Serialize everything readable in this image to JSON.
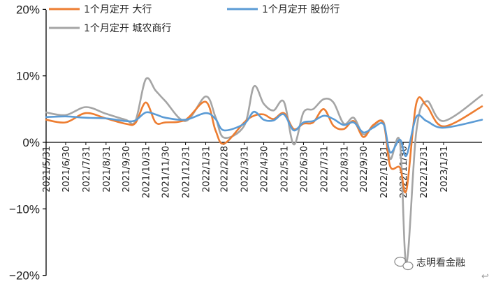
{
  "chart_data": {
    "type": "line",
    "title": "",
    "xlabel": "",
    "ylabel": "",
    "ylim": [
      -20,
      20
    ],
    "y_ticks": [
      20,
      10,
      0,
      -10,
      -20
    ],
    "y_tick_labels": [
      "20%",
      "10%",
      "0%",
      "−10%",
      "−20%"
    ],
    "grid": false,
    "legend_position": "top-left",
    "x": [
      "2021/5/31",
      "2021/6/30",
      "2021/7/31",
      "2021/8/31",
      "2021/9/30",
      "2021/10/31",
      "2021/11/30",
      "2021/12/31",
      "2022/1/31",
      "2022/2/28",
      "2022/3/31",
      "2022/4/30",
      "2022/5/31",
      "2022/6/30",
      "2022/7/31",
      "2022/8/31",
      "2022/9/30",
      "2022/10/31",
      "2022/11/30",
      "2022/12/31",
      "2023/1/31",
      "2023/3/31"
    ],
    "x_ticks_shown": [
      "2021/5/31",
      "2021/6/30",
      "2021/7/31",
      "2021/8/31",
      "2021/9/30",
      "2021/10/31",
      "2021/11/30",
      "2021/12/31",
      "2022/1/31",
      "2022/2/28",
      "2022/3/31",
      "2022/4/30",
      "2022/5/31",
      "2022/6/30",
      "2022/7/31",
      "2022/8/31",
      "2022/9/30",
      "2022/10/31",
      "2022/11/30",
      "2022/12/31",
      "2023/1/31"
    ],
    "series": [
      {
        "name": "1个月定开  大行",
        "color": "#ED7D31",
        "points": [
          [
            "2021/5/31",
            3.4
          ],
          [
            "2021/6/30",
            3.0
          ],
          [
            "2021/7/31",
            4.4
          ],
          [
            "2021/8/31",
            3.6
          ],
          [
            "2021/9/30",
            2.8
          ],
          [
            "2021/10/15",
            2.9
          ],
          [
            "2021/10/31",
            6.0
          ],
          [
            "2021/11/15",
            3.0
          ],
          [
            "2021/11/30",
            3.0
          ],
          [
            "2021/12/31",
            3.4
          ],
          [
            "2022/1/31",
            6.1
          ],
          [
            "2022/2/15",
            1.8
          ],
          [
            "2022/2/28",
            -0.2
          ],
          [
            "2022/3/31",
            3.0
          ],
          [
            "2022/4/15",
            4.0
          ],
          [
            "2022/4/30",
            4.2
          ],
          [
            "2022/5/15",
            3.5
          ],
          [
            "2022/5/31",
            4.4
          ],
          [
            "2022/6/15",
            2.0
          ],
          [
            "2022/6/30",
            2.8
          ],
          [
            "2022/7/15",
            3.0
          ],
          [
            "2022/7/31",
            5.0
          ],
          [
            "2022/8/15",
            2.5
          ],
          [
            "2022/8/31",
            2.0
          ],
          [
            "2022/9/15",
            3.2
          ],
          [
            "2022/9/30",
            0.8
          ],
          [
            "2022/10/15",
            2.6
          ],
          [
            "2022/10/31",
            2.8
          ],
          [
            "2022/11/10",
            -3.6
          ],
          [
            "2022/11/25",
            -3.8
          ],
          [
            "2022/12/5",
            -7.2
          ],
          [
            "2022/12/20",
            5.8
          ],
          [
            "2023/1/5",
            5.5
          ],
          [
            "2023/1/31",
            2.4
          ],
          [
            "2023/3/31",
            5.4
          ]
        ]
      },
      {
        "name": "1个月定开  股份行",
        "color": "#5B9BD5",
        "points": [
          [
            "2021/5/31",
            3.8
          ],
          [
            "2021/6/30",
            3.9
          ],
          [
            "2021/7/31",
            3.7
          ],
          [
            "2021/8/31",
            3.6
          ],
          [
            "2021/9/30",
            3.2
          ],
          [
            "2021/10/15",
            3.3
          ],
          [
            "2021/10/31",
            4.5
          ],
          [
            "2021/11/15",
            4.2
          ],
          [
            "2021/11/30",
            3.7
          ],
          [
            "2021/12/31",
            3.4
          ],
          [
            "2022/1/31",
            4.4
          ],
          [
            "2022/2/15",
            3.5
          ],
          [
            "2022/2/28",
            1.8
          ],
          [
            "2022/3/31",
            2.8
          ],
          [
            "2022/4/15",
            4.6
          ],
          [
            "2022/4/30",
            3.4
          ],
          [
            "2022/5/15",
            3.3
          ],
          [
            "2022/5/31",
            4.2
          ],
          [
            "2022/6/15",
            1.8
          ],
          [
            "2022/6/30",
            3.0
          ],
          [
            "2022/7/15",
            3.2
          ],
          [
            "2022/7/31",
            4.0
          ],
          [
            "2022/8/15",
            3.5
          ],
          [
            "2022/8/31",
            2.6
          ],
          [
            "2022/9/15",
            3.0
          ],
          [
            "2022/9/30",
            1.5
          ],
          [
            "2022/10/15",
            2.2
          ],
          [
            "2022/10/31",
            2.7
          ],
          [
            "2022/11/10",
            -1.5
          ],
          [
            "2022/11/25",
            0.4
          ],
          [
            "2022/12/5",
            -2.0
          ],
          [
            "2022/12/20",
            3.8
          ],
          [
            "2023/1/5",
            3.2
          ],
          [
            "2023/1/31",
            2.2
          ],
          [
            "2023/3/31",
            3.4
          ]
        ]
      },
      {
        "name": "1个月定开  城农商行",
        "color": "#A5A5A5",
        "points": [
          [
            "2021/5/31",
            4.5
          ],
          [
            "2021/6/30",
            4.1
          ],
          [
            "2021/7/31",
            5.3
          ],
          [
            "2021/8/31",
            4.3
          ],
          [
            "2021/9/30",
            3.4
          ],
          [
            "2021/10/15",
            3.2
          ],
          [
            "2021/10/31",
            9.5
          ],
          [
            "2021/11/15",
            7.8
          ],
          [
            "2021/11/30",
            6.2
          ],
          [
            "2021/12/31",
            3.2
          ],
          [
            "2022/1/31",
            6.9
          ],
          [
            "2022/2/15",
            3.8
          ],
          [
            "2022/2/28",
            0.7
          ],
          [
            "2022/3/31",
            2.5
          ],
          [
            "2022/4/15",
            8.4
          ],
          [
            "2022/4/30",
            5.8
          ],
          [
            "2022/5/15",
            4.8
          ],
          [
            "2022/5/31",
            6.1
          ],
          [
            "2022/6/15",
            -0.3
          ],
          [
            "2022/6/30",
            4.5
          ],
          [
            "2022/7/15",
            5.0
          ],
          [
            "2022/7/31",
            6.5
          ],
          [
            "2022/8/15",
            6.0
          ],
          [
            "2022/8/31",
            2.8
          ],
          [
            "2022/9/15",
            3.7
          ],
          [
            "2022/9/30",
            1.2
          ],
          [
            "2022/10/15",
            2.5
          ],
          [
            "2022/10/31",
            3.0
          ],
          [
            "2022/11/10",
            -2.5
          ],
          [
            "2022/11/25",
            0.0
          ],
          [
            "2022/12/5",
            -18.2
          ],
          [
            "2022/12/20",
            1.5
          ],
          [
            "2023/1/5",
            6.2
          ],
          [
            "2023/1/31",
            3.2
          ],
          [
            "2023/3/31",
            7.1
          ]
        ]
      }
    ]
  },
  "watermark": {
    "text": "志明看金融",
    "icon": "wechat-logo-icon"
  },
  "corner_mark": {
    "text": "↩",
    "icon": "return-arrow-icon"
  }
}
